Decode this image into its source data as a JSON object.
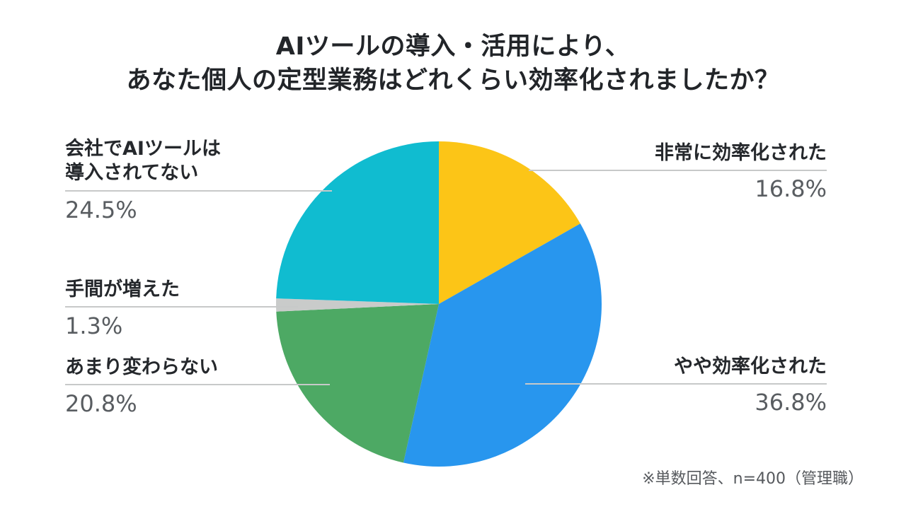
{
  "title": {
    "line1": "AIツールの導入・活用により、",
    "line2": "あなた個人の定型業務はどれくらい効率化されましたか？"
  },
  "footnote": "※単数回答、n=400（管理職）",
  "chart_data": {
    "type": "pie",
    "title": "AIツールの導入・活用により、あなた個人の定型業務はどれくらい効率化されましたか？",
    "categories": [
      "非常に効率化された",
      "やや効率化された",
      "あまり変わらない",
      "手間が増えた",
      "会社でAIツールは導入されてない"
    ],
    "values": [
      16.8,
      36.8,
      20.8,
      1.3,
      24.5
    ],
    "unit": "%",
    "colors": [
      "#FCC517",
      "#2896EE",
      "#4DA964",
      "#C9CBCA",
      "#10BCD0"
    ],
    "start_angle": "12-oclock",
    "direction": "clockwise",
    "legend_position": "outside-callouts",
    "sample_note": "※単数回答、n=400（管理職）"
  },
  "callouts": {
    "very_efficient": {
      "label": "非常に効率化された",
      "value": "16.8%"
    },
    "somewhat_efficient": {
      "label": "やや効率化された",
      "value": "36.8%"
    },
    "not_much_change": {
      "label": "あまり変わらない",
      "value": "20.8%"
    },
    "more_work": {
      "label": "手間が増えた",
      "value": "1.3%"
    },
    "not_introduced": {
      "label_line1": "会社でAIツールは",
      "label_line2": "導入されてない",
      "value": "24.5%"
    }
  }
}
